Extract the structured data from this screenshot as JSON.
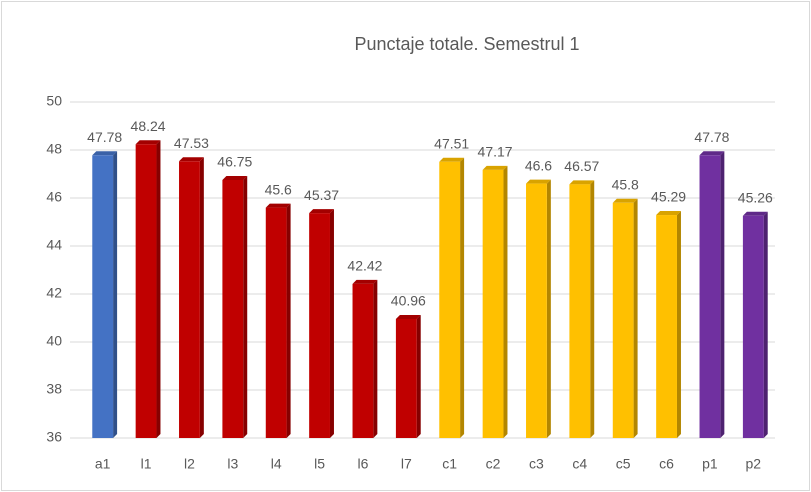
{
  "chart_data": {
    "type": "bar",
    "title": "Punctaje totale. Semestrul 1",
    "categories": [
      "a1",
      "l1",
      "l2",
      "l3",
      "l4",
      "l5",
      "l6",
      "l7",
      "c1",
      "c2",
      "c3",
      "c4",
      "c5",
      "c6",
      "p1",
      "p2"
    ],
    "values": [
      47.78,
      48.24,
      47.53,
      46.75,
      45.6,
      45.37,
      42.42,
      40.96,
      47.51,
      47.17,
      46.6,
      46.57,
      45.8,
      45.29,
      47.78,
      45.26
    ],
    "colors": [
      "#4472c4",
      "#c00000",
      "#c00000",
      "#c00000",
      "#c00000",
      "#c00000",
      "#c00000",
      "#c00000",
      "#ffc000",
      "#ffc000",
      "#ffc000",
      "#ffc000",
      "#ffc000",
      "#ffc000",
      "#7030a0",
      "#7030a0"
    ],
    "ylim": [
      36,
      50
    ],
    "yticks": [
      36,
      38,
      40,
      42,
      44,
      46,
      48,
      50
    ],
    "grid": true
  }
}
